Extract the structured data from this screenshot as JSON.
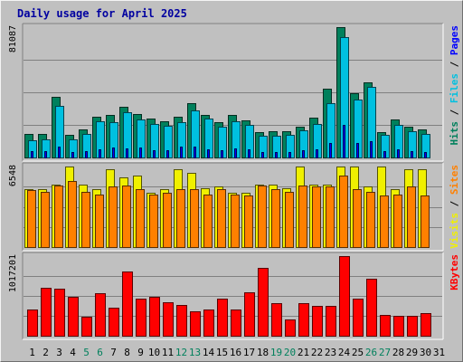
{
  "colors": {
    "hits": "#00805c",
    "files": "#00c0e0",
    "pages": "#0000ff",
    "visits": "#f0f000",
    "sites": "#ff8000",
    "kbytes": "#ff0000",
    "title": "#0000a0",
    "weekend_day": "#00805c",
    "weekday": "#000000",
    "panel_bg": "#c0c0c0"
  },
  "chart_data": {
    "type": "bar",
    "title": "Daily usage for April 2025",
    "weekend_days": [
      5,
      6,
      12,
      13,
      19,
      20,
      26,
      27
    ],
    "x": [
      1,
      2,
      3,
      4,
      5,
      6,
      7,
      8,
      9,
      10,
      11,
      12,
      13,
      14,
      15,
      16,
      17,
      18,
      19,
      20,
      21,
      22,
      23,
      24,
      25,
      26,
      27,
      28,
      29,
      30,
      31
    ],
    "panels": [
      {
        "id": "hits-files-pages",
        "max_label": "81087",
        "ymax": 81087,
        "legend": [
          {
            "text": "Hits",
            "color_key": "hits"
          },
          {
            "text": " / ",
            "color_key": "weekday"
          },
          {
            "text": "Files",
            "color_key": "files"
          },
          {
            "text": " / ",
            "color_key": "weekday"
          },
          {
            "text": "Pages",
            "color_key": "pages"
          }
        ],
        "series": [
          {
            "name": "Hits",
            "color_key": "hits",
            "values": [
              14500,
              14500,
              38000,
              14000,
              17500,
              25500,
              26500,
              31500,
              27000,
              24000,
              22500,
              25500,
              34000,
              26500,
              22000,
              26500,
              23000,
              16000,
              16500,
              16500,
              19000,
              24500,
              43000,
              81087,
              40000,
              47000,
              15500,
              23500,
              19000,
              17500
            ]
          },
          {
            "name": "Files",
            "color_key": "files",
            "values": [
              10500,
              11000,
              32000,
              11000,
              14500,
              22500,
              22000,
              28000,
              23500,
              21000,
              19500,
              22000,
              29000,
              24000,
              19000,
              22500,
              20500,
              13500,
              13500,
              14000,
              17000,
              21000,
              34000,
              75000,
              36000,
              44000,
              14000,
              20500,
              16500,
              14500
            ]
          },
          {
            "name": "Pages",
            "color_key": "pages",
            "values": [
              4000,
              4000,
              7000,
              3500,
              4000,
              5000,
              6000,
              5500,
              6000,
              4500,
              4500,
              6500,
              7000,
              5000,
              4500,
              5500,
              5000,
              3500,
              3500,
              3500,
              4500,
              5000,
              9000,
              20000,
              9000,
              10000,
              4000,
              5000,
              4000,
              3500
            ]
          }
        ]
      },
      {
        "id": "visits-sites",
        "max_label": "6548",
        "ymax": 6548,
        "legend": [
          {
            "text": "Visits",
            "color_key": "visits"
          },
          {
            "text": " / ",
            "color_key": "weekday"
          },
          {
            "text": "Sites",
            "color_key": "sites"
          }
        ],
        "series": [
          {
            "name": "Visits",
            "color_key": "visits",
            "values": [
              4700,
              4700,
              5100,
              6548,
              5100,
              4700,
              6300,
              5700,
              5800,
              4400,
              4700,
              6300,
              6000,
              4800,
              4900,
              4400,
              4400,
              5100,
              5100,
              4800,
              6548,
              5100,
              5100,
              6548,
              6548,
              4900,
              6548,
              4700,
              6300,
              6300
            ]
          },
          {
            "name": "Sites",
            "color_key": "sites",
            "values": [
              4600,
              4500,
              5000,
              5400,
              4500,
              4300,
              4900,
              5000,
              4700,
              4300,
              4400,
              4700,
              4700,
              4300,
              4700,
              4300,
              4200,
              5000,
              4700,
              4500,
              5000,
              4900,
              4900,
              5800,
              4700,
              4500,
              4200,
              4300,
              4900,
              4200
            ]
          }
        ]
      },
      {
        "id": "kbytes",
        "max_label": "1017201",
        "ymax": 1017201,
        "legend": [
          {
            "text": "KBytes",
            "color_key": "kbytes"
          }
        ],
        "series": [
          {
            "name": "KBytes",
            "color_key": "kbytes",
            "values": [
              335000,
              614000,
              596000,
              502000,
              244000,
              542000,
              354000,
              826000,
              478000,
              502000,
              430000,
              394000,
              316000,
              340000,
              478000,
              334000,
              558000,
              862000,
              412000,
              208000,
              412000,
              382000,
              382000,
              1017201,
              478000,
              734000,
              268000,
              250000,
              250000,
              286000
            ]
          }
        ]
      }
    ]
  }
}
